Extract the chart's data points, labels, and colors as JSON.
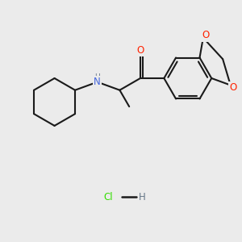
{
  "bg_color": "#ebebeb",
  "bond_color": "#1a1a1a",
  "O_color": "#ff2200",
  "N_color": "#4466dd",
  "H_color": "#667788",
  "Cl_color": "#33dd00",
  "lw": 1.5,
  "dbo": 0.012,
  "xlim": [
    0,
    10
  ],
  "ylim": [
    0,
    10
  ],
  "hcl_x": 5.0,
  "hcl_y": 1.8
}
